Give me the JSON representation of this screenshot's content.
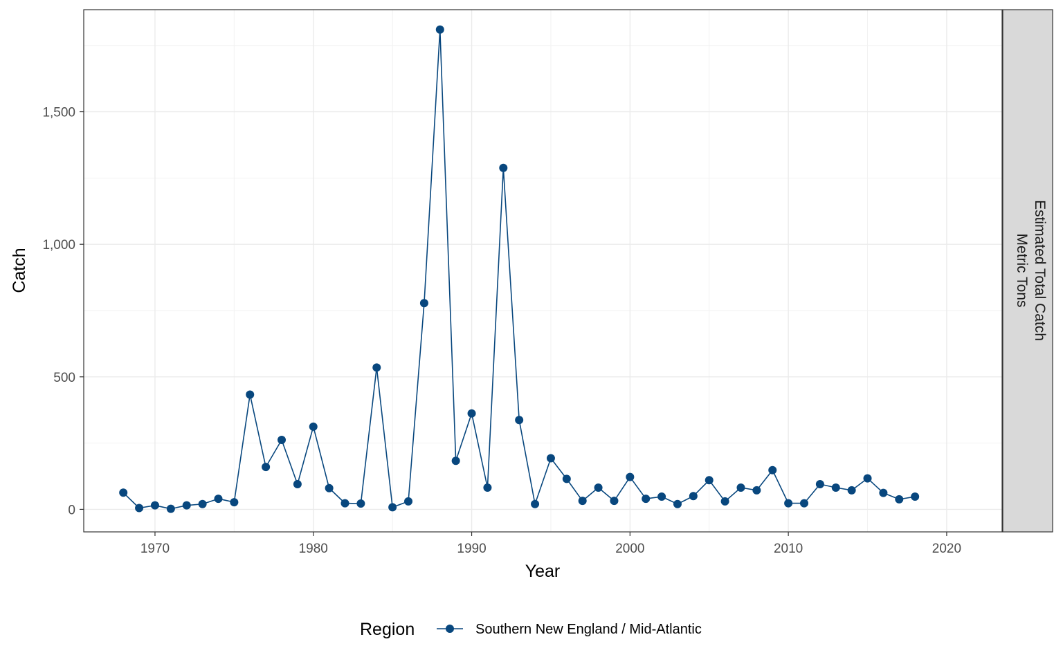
{
  "chart_data": {
    "type": "line",
    "xlabel": "Year",
    "ylabel": "Catch",
    "xlim": [
      1965.5,
      2023.5
    ],
    "ylim": [
      -85,
      1885
    ],
    "x_ticks": [
      1970,
      1980,
      1990,
      2000,
      2010,
      2020
    ],
    "x_tick_labels": [
      "1970",
      "1980",
      "1990",
      "2000",
      "2010",
      "2020"
    ],
    "y_ticks": [
      0,
      500,
      1000,
      1500
    ],
    "y_tick_labels": [
      "0",
      "500",
      "1,000",
      "1,500"
    ],
    "grid": true,
    "facet_strip": {
      "lines": [
        "Estimated Total Catch",
        "Metric Tons"
      ]
    },
    "legend": {
      "title": "Region",
      "position": "bottom"
    },
    "series": [
      {
        "name": "Southern New England / Mid-Atlantic",
        "color": "#08477e",
        "x": [
          1968,
          1969,
          1970,
          1971,
          1972,
          1973,
          1974,
          1975,
          1976,
          1977,
          1978,
          1979,
          1980,
          1981,
          1982,
          1983,
          1984,
          1985,
          1986,
          1987,
          1988,
          1989,
          1990,
          1991,
          1992,
          1993,
          1994,
          1995,
          1996,
          1997,
          1998,
          1999,
          2000,
          2001,
          2002,
          2003,
          2004,
          2005,
          2006,
          2007,
          2008,
          2009,
          2010,
          2011,
          2012,
          2013,
          2014,
          2015,
          2016,
          2017,
          2018
        ],
        "values": [
          63,
          5,
          15,
          2,
          15,
          20,
          40,
          27,
          433,
          160,
          262,
          95,
          312,
          80,
          23,
          22,
          535,
          8,
          30,
          778,
          1810,
          183,
          362,
          82,
          1288,
          337,
          20,
          193,
          115,
          32,
          82,
          32,
          122,
          40,
          48,
          20,
          50,
          110,
          30,
          82,
          72,
          148,
          23,
          23,
          95,
          82,
          72,
          117,
          62,
          38,
          48
        ]
      }
    ]
  }
}
